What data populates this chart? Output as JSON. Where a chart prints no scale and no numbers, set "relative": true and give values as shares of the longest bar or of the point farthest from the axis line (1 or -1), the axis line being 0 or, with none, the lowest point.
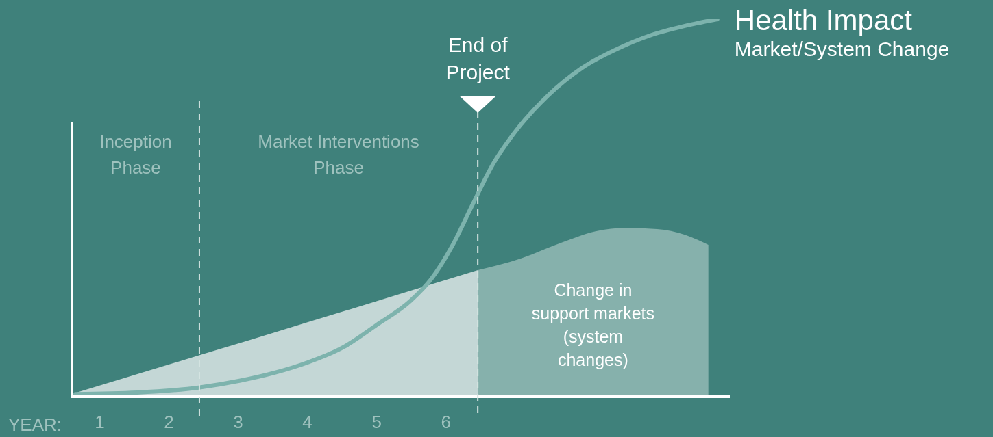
{
  "chart_data": {
    "type": "line",
    "relative": true,
    "xlabel": "YEAR:",
    "xlim": [
      0.6,
      10.1
    ],
    "xticks": [
      1,
      2,
      3,
      4,
      5,
      6
    ],
    "series": [
      {
        "type": "area",
        "color": "#c4d7d6",
        "x": [
          0.65,
          3.52,
          6.46
        ],
        "values": [
          0.01,
          0.17,
          0.335
        ]
      },
      {
        "type": "area",
        "name": "Change in support markets (system changes)",
        "color": "#86b1ac",
        "x": [
          6.46,
          7.08,
          7.67,
          8.16,
          8.61,
          9.05,
          9.45,
          9.79
        ],
        "values": [
          0.335,
          0.366,
          0.408,
          0.438,
          0.447,
          0.444,
          0.429,
          0.402
        ]
      },
      {
        "name": "Health Impact",
        "color": "#7db3ad",
        "x": [
          0.65,
          1.54,
          2.43,
          3.02,
          3.52,
          4.01,
          4.51,
          5.0,
          5.49,
          5.79,
          6.09,
          6.38,
          6.68,
          6.98,
          7.47,
          7.96,
          8.46,
          8.95,
          9.45,
          9.92
        ],
        "values": [
          0.007,
          0.011,
          0.024,
          0.042,
          0.063,
          0.091,
          0.13,
          0.19,
          0.254,
          0.312,
          0.399,
          0.507,
          0.616,
          0.697,
          0.797,
          0.87,
          0.92,
          0.957,
          0.982,
          1.0
        ]
      }
    ],
    "ref_lines": [
      {
        "axis": "x",
        "value": 2.44,
        "line_style": "dashed",
        "color": "#d5e4e2"
      },
      {
        "axis": "x",
        "value": 6.46,
        "label": "End of Project",
        "line_style": "dashed",
        "color": "#d5e4e2"
      }
    ],
    "annotations": [
      "Inception Phase",
      "Market Interventions Phase",
      "Market/System Change"
    ]
  }
}
